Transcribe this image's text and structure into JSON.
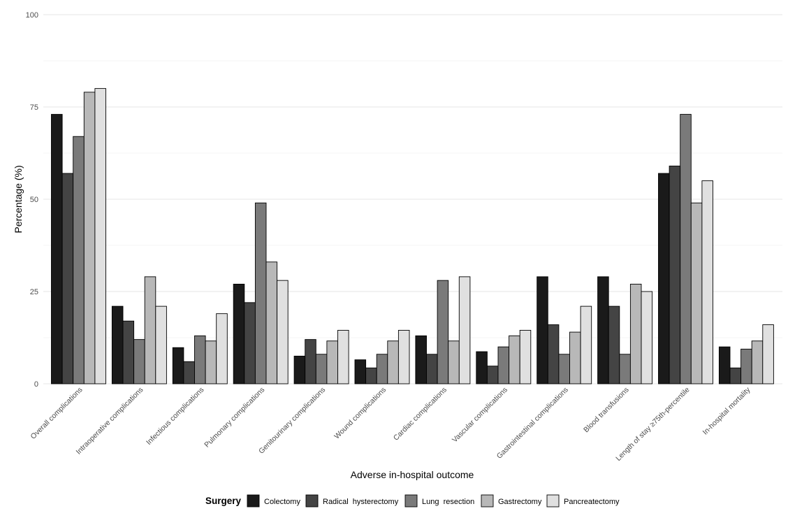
{
  "chart_data": {
    "type": "bar",
    "xlabel": "Adverse in-hospital outcome",
    "ylabel": "Percentage (%)",
    "ylim": [
      0,
      100
    ],
    "yticks": [
      0,
      25,
      50,
      75,
      100
    ],
    "grid": true,
    "legend_position": "bottom",
    "legend_title": "Surgery",
    "categories": [
      "Overall complications",
      "Intraoperative complications",
      "Infectious complications",
      "Pulmonary complications",
      "Genitourinary complications",
      "Wound complications",
      "Cardiac complications",
      "Vascular complications",
      "Gastrointestinal complications",
      "Blood transfusions",
      "Length of stay ≥75th-percentile",
      "In-hospital mortality"
    ],
    "series": [
      {
        "name": "Colectomy",
        "color": "#1a1a1a",
        "values": [
          73,
          21,
          9.8,
          27,
          7.5,
          6.5,
          13,
          8.7,
          29,
          29,
          57,
          10
        ]
      },
      {
        "name": "Radical  hysterectomy",
        "color": "#444444",
        "values": [
          57,
          17,
          6,
          22,
          12,
          4.3,
          8,
          4.8,
          16,
          21,
          59,
          4.3
        ]
      },
      {
        "name": "Lung  resection",
        "color": "#7a7a7a",
        "values": [
          67,
          12,
          13,
          49,
          8,
          8,
          28,
          10,
          8,
          8,
          73,
          9.4
        ]
      },
      {
        "name": "Gastrectomy",
        "color": "#b8b8b8",
        "values": [
          79,
          29,
          11.6,
          33,
          11.6,
          11.6,
          11.6,
          13,
          14,
          27,
          49,
          11.6
        ]
      },
      {
        "name": "Pancreatectomy",
        "color": "#e0e0e0",
        "values": [
          80,
          21,
          19,
          28,
          14.5,
          14.5,
          29,
          14.5,
          21,
          25,
          55,
          16
        ]
      }
    ]
  }
}
